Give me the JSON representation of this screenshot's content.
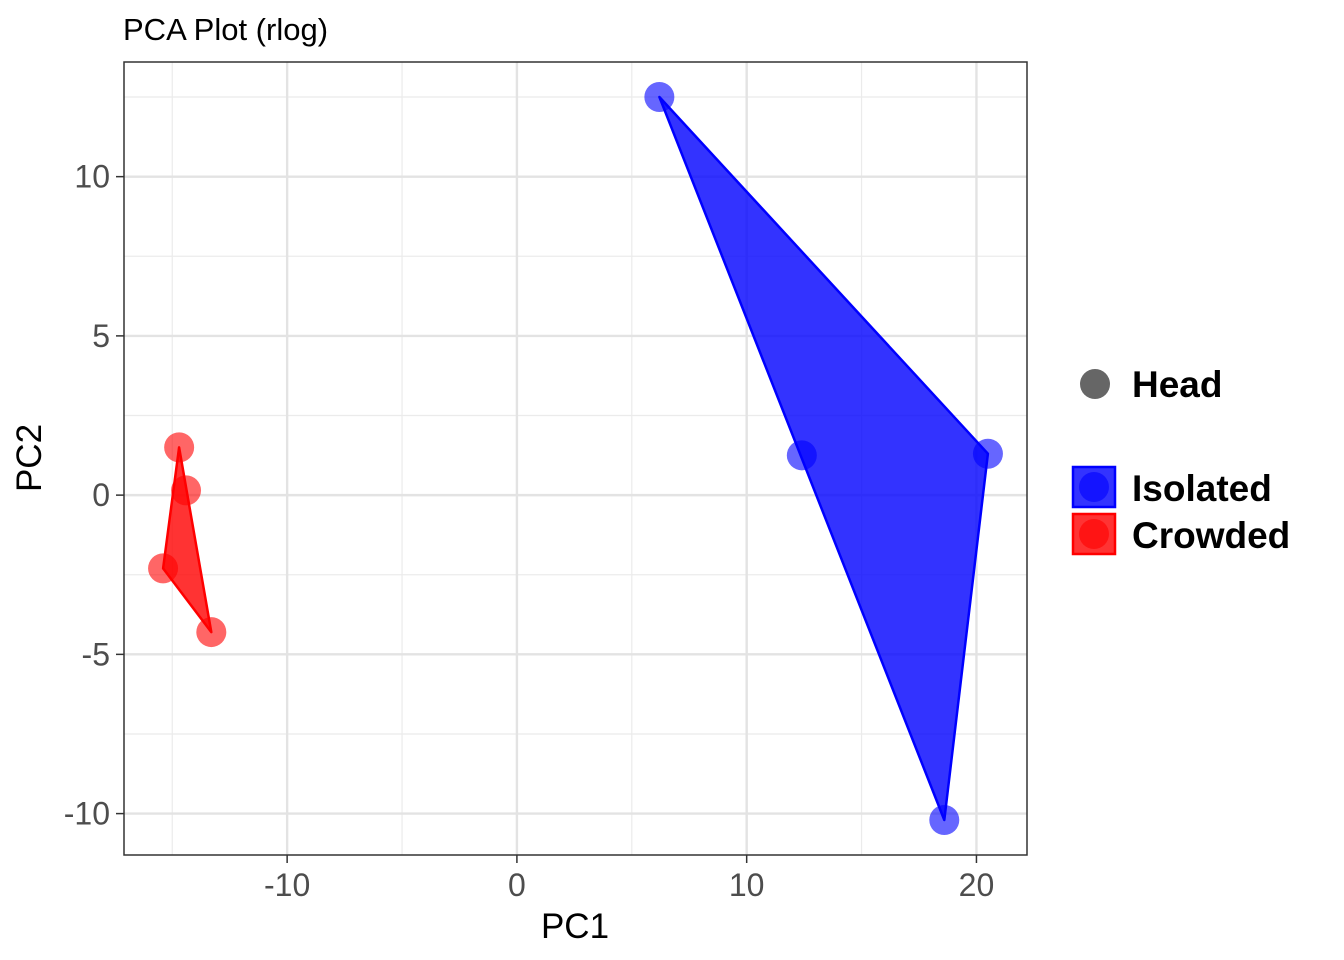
{
  "chart_data": {
    "type": "scatter",
    "title": "PCA Plot (rlog)",
    "xlabel": "PC1",
    "ylabel": "PC2",
    "xlim": [
      -17.1,
      22.2
    ],
    "ylim": [
      -11.3,
      13.6
    ],
    "x_ticks": [
      -10,
      0,
      10,
      20
    ],
    "y_ticks": [
      -10,
      -5,
      0,
      5,
      10
    ],
    "x_tick_labels": [
      "-10",
      "0",
      "10",
      "20"
    ],
    "y_tick_labels": [
      "-10",
      "-5",
      "0",
      "5",
      "10"
    ],
    "grid": true,
    "legend_position": "right",
    "shape_legend": {
      "label": "Head",
      "color": "#666666"
    },
    "series": [
      {
        "name": "Isolated",
        "color": "#0000ff",
        "points": [
          {
            "x": 6.2,
            "y": 12.5
          },
          {
            "x": 12.4,
            "y": 1.25
          },
          {
            "x": 20.5,
            "y": 1.3
          },
          {
            "x": 18.6,
            "y": -10.2
          }
        ],
        "hull": [
          [
            6.2,
            12.5
          ],
          [
            20.5,
            1.3
          ],
          [
            18.6,
            -10.2
          ]
        ]
      },
      {
        "name": "Crowded",
        "color": "#ff0000",
        "points": [
          {
            "x": -14.7,
            "y": 1.5
          },
          {
            "x": -14.4,
            "y": 0.15
          },
          {
            "x": -15.4,
            "y": -2.3
          },
          {
            "x": -13.3,
            "y": -4.3
          }
        ],
        "hull": [
          [
            -14.7,
            1.5
          ],
          [
            -13.3,
            -4.3
          ],
          [
            -15.4,
            -2.3
          ]
        ]
      }
    ]
  }
}
